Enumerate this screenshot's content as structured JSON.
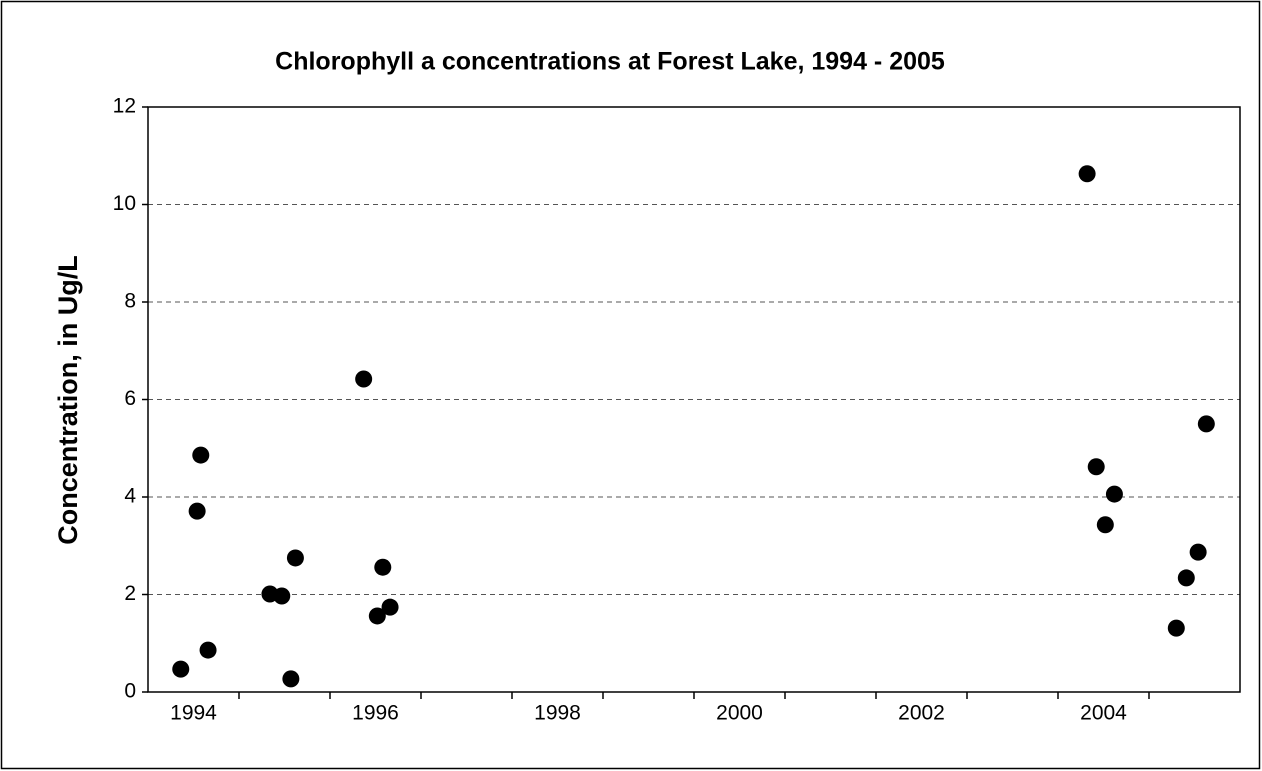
{
  "chart_data": {
    "type": "scatter",
    "title": "Chlorophyll a concentrations at Forest Lake, 1994 - 2005",
    "y_label": "Concentration, in Ug/L",
    "color": "#000000",
    "grid": true,
    "xlim": [
      1994,
      2006
    ],
    "ylim": [
      0,
      12
    ],
    "yticks": [
      0,
      2,
      4,
      6,
      8,
      10,
      12
    ],
    "xticks": [
      {
        "value": 1994.5,
        "label": "1994"
      },
      {
        "value": 1996.5,
        "label": "1996"
      },
      {
        "value": 1998.5,
        "label": "1998"
      },
      {
        "value": 2000.5,
        "label": "2000"
      },
      {
        "value": 2002.5,
        "label": "2002"
      },
      {
        "value": 2004.5,
        "label": "2004"
      }
    ],
    "x_tick_marks": [
      1995,
      1996,
      1997,
      1998,
      1999,
      2000,
      2001,
      2002,
      2003,
      2004,
      2005
    ],
    "x": [
      1994.36,
      1994.54,
      1994.58,
      1994.66,
      1995.34,
      1995.47,
      1995.57,
      1995.62,
      1996.37,
      1996.52,
      1996.58,
      1996.66,
      2004.32,
      2004.42,
      2004.52,
      2004.62,
      2005.3,
      2005.41,
      2005.54,
      2005.63
    ],
    "values": [
      0.47,
      3.71,
      4.86,
      0.86,
      2.01,
      1.97,
      0.27,
      2.75,
      6.42,
      1.56,
      2.56,
      1.74,
      10.63,
      4.62,
      3.43,
      4.06,
      1.31,
      2.34,
      2.87,
      5.5
    ]
  }
}
